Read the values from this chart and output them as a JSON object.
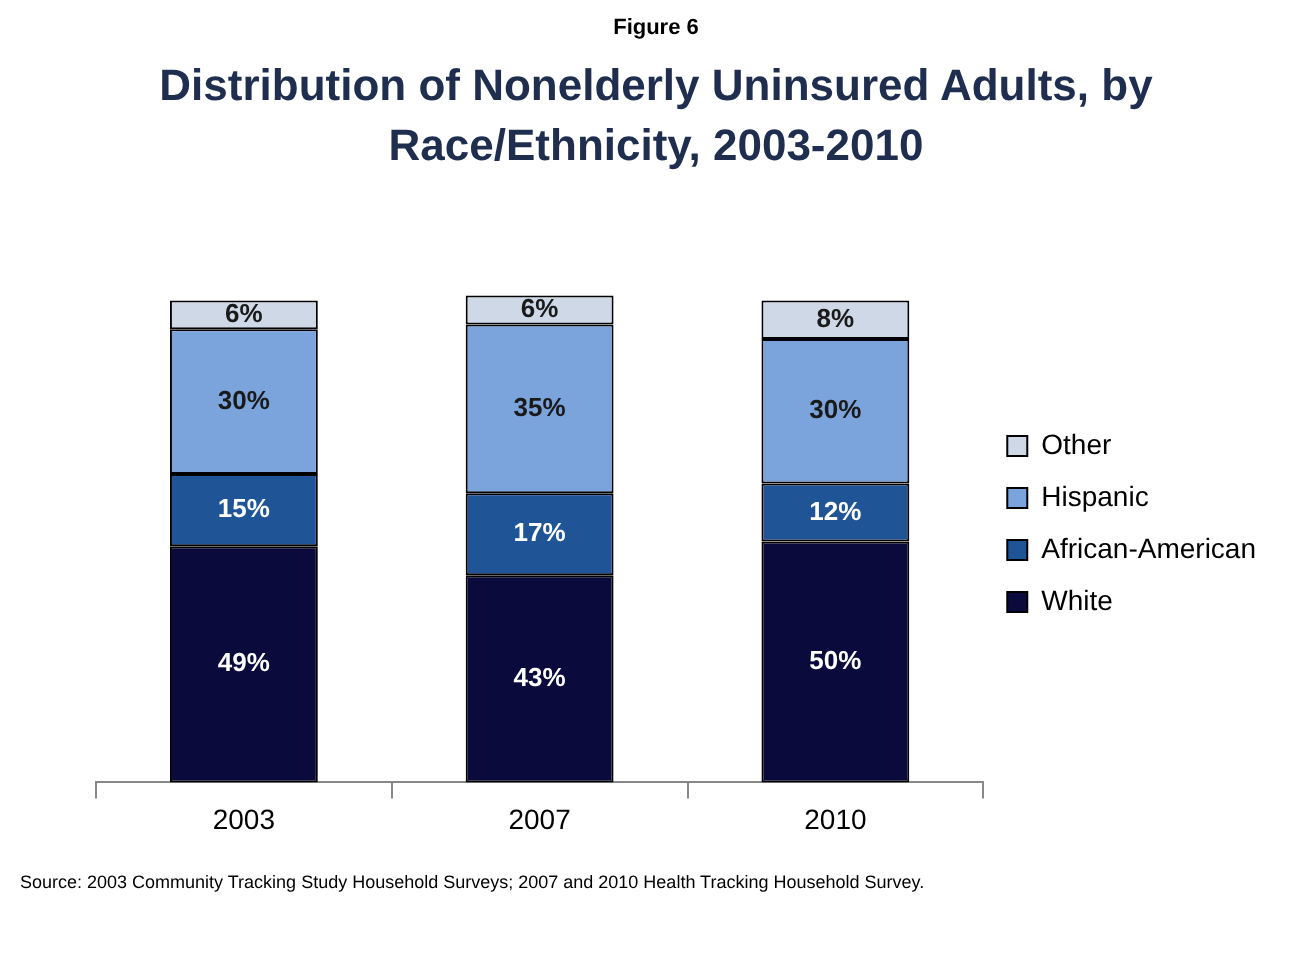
{
  "chart_data": {
    "type": "bar",
    "subtitle": "Figure 6",
    "title": "Distribution of Nonelderly Uninsured Adults, by Race/Ethnicity, 2003-2010",
    "categories": [
      "2003",
      "2007",
      "2010"
    ],
    "stacked": true,
    "legend": "right",
    "grid": false,
    "series": [
      {
        "name": "White",
        "color": "#0a0a3c",
        "values": [
          49,
          43,
          50
        ],
        "value_labels": [
          "49%",
          "43%",
          "50%"
        ]
      },
      {
        "name": "African-American",
        "color": "#1f5597",
        "values": [
          15,
          17,
          12
        ],
        "value_labels": [
          "15%",
          "17%",
          "12%"
        ]
      },
      {
        "name": "Hispanic",
        "color": "#7ba3dc",
        "values": [
          30,
          35,
          30
        ],
        "value_labels": [
          "30%",
          "35%",
          "30%"
        ]
      },
      {
        "name": "Other",
        "color": "#cfd8e6",
        "values": [
          6,
          6,
          8
        ],
        "value_labels": [
          "6%",
          "6%",
          "8%"
        ]
      }
    ],
    "annotations": [
      "Source: 2003 Community Tracking Study Household Surveys; 2007 and 2010 Health Tracking Household Survey."
    ]
  }
}
